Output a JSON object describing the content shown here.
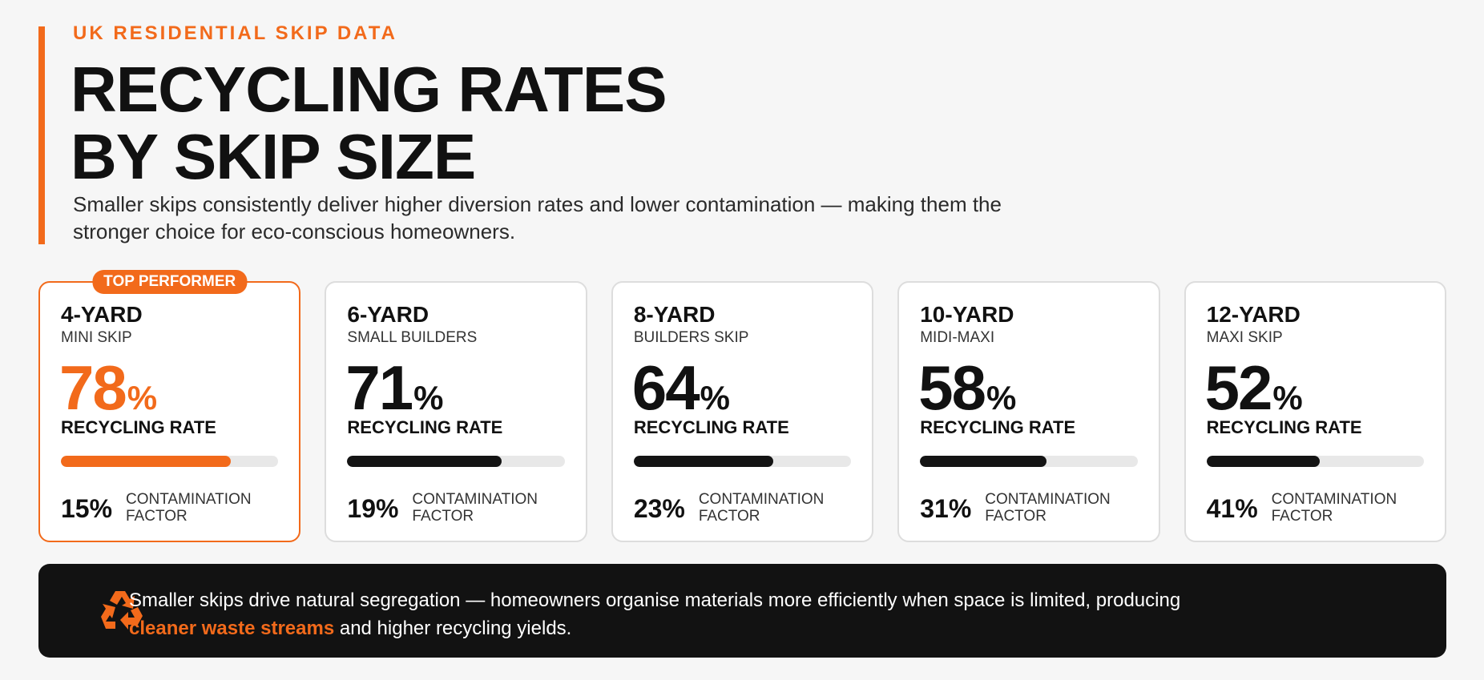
{
  "header": {
    "kicker": "UK RESIDENTIAL SKIP DATA",
    "title_line1": "RECYCLING RATES",
    "title_line2": "BY SKIP SIZE",
    "subtitle": "Smaller skips consistently deliver higher diversion rates and lower contamination — making them the stronger choice for eco-conscious homeowners."
  },
  "badge": "TOP PERFORMER",
  "percent_sign": "%",
  "rate_label": "RECYCLING RATE",
  "contamination_label": "CONTAMINATION FACTOR",
  "cards": [
    {
      "size": "4-YARD",
      "type": "MINI SKIP",
      "rate": 78,
      "contamination": "15%"
    },
    {
      "size": "6-YARD",
      "type": "SMALL BUILDERS",
      "rate": 71,
      "contamination": "19%"
    },
    {
      "size": "8-YARD",
      "type": "BUILDERS SKIP",
      "rate": 64,
      "contamination": "23%"
    },
    {
      "size": "10-YARD",
      "type": "MIDI-MAXI",
      "rate": 58,
      "contamination": "31%"
    },
    {
      "size": "12-YARD",
      "type": "MAXI SKIP",
      "rate": 52,
      "contamination": "41%"
    }
  ],
  "footer": {
    "text_before": "Smaller skips drive natural segregation — homeowners organise materials more efficiently when space is limited, producing",
    "highlight": "cleaner waste streams",
    "text_after": "and higher recycling yields."
  }
}
